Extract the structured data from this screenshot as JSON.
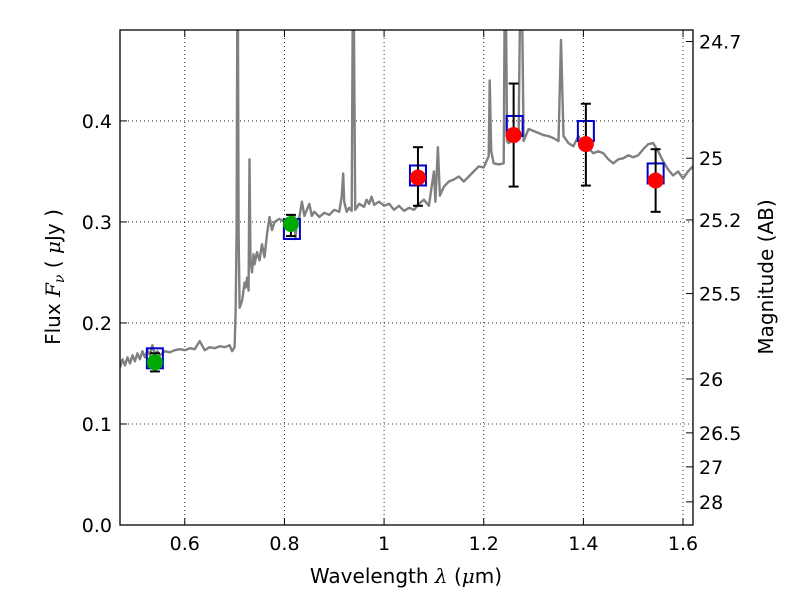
{
  "chart_data": {
    "type": "scatter",
    "xlabel": "Wavelength  λ (μm)",
    "ylabel": "Flux  Fν  ( μJy )",
    "y2label": "Magnitude (AB)",
    "xlim": [
      0.47,
      1.62
    ],
    "ylim": [
      0.0,
      0.49
    ],
    "x_ticks": [
      0.6,
      0.8,
      1.0,
      1.2,
      1.4,
      1.6
    ],
    "x_tick_labels": [
      "0.6",
      "0.8",
      "1",
      "1.2",
      "1.4",
      "1.6"
    ],
    "y_ticks": [
      0.0,
      0.1,
      0.2,
      0.3,
      0.4
    ],
    "y_tick_labels": [
      "0.0",
      "0.1",
      "0.2",
      "0.3",
      "0.4"
    ],
    "y2_ticks": [
      {
        "label": "24.7",
        "mag": 24.7
      },
      {
        "label": "25",
        "mag": 25.0
      },
      {
        "label": "25.2",
        "mag": 25.2
      },
      {
        "label": "25.5",
        "mag": 25.5
      },
      {
        "label": "26",
        "mag": 26.0
      },
      {
        "label": "26.5",
        "mag": 26.5
      },
      {
        "label": "27",
        "mag": 27.0
      },
      {
        "label": "28",
        "mag": 28.0
      }
    ],
    "grid": true,
    "colors": {
      "spectrum": "#808080",
      "model_box": "#0000cc",
      "observed_red": "#ff0000",
      "observed_green": "#00aa00",
      "errorbar": "#000000"
    },
    "series": [
      {
        "name": "model spectrum",
        "kind": "line",
        "points": [
          [
            0.47,
            0.156
          ],
          [
            0.475,
            0.164
          ],
          [
            0.48,
            0.158
          ],
          [
            0.485,
            0.166
          ],
          [
            0.49,
            0.16
          ],
          [
            0.495,
            0.168
          ],
          [
            0.5,
            0.162
          ],
          [
            0.505,
            0.17
          ],
          [
            0.51,
            0.164
          ],
          [
            0.515,
            0.172
          ],
          [
            0.52,
            0.166
          ],
          [
            0.525,
            0.173
          ],
          [
            0.53,
            0.168
          ],
          [
            0.535,
            0.178
          ],
          [
            0.54,
            0.169
          ],
          [
            0.545,
            0.172
          ],
          [
            0.55,
            0.168
          ],
          [
            0.56,
            0.172
          ],
          [
            0.57,
            0.171
          ],
          [
            0.58,
            0.173
          ],
          [
            0.59,
            0.174
          ],
          [
            0.6,
            0.173
          ],
          [
            0.61,
            0.175
          ],
          [
            0.62,
            0.174
          ],
          [
            0.63,
            0.182
          ],
          [
            0.64,
            0.173
          ],
          [
            0.65,
            0.176
          ],
          [
            0.66,
            0.175
          ],
          [
            0.67,
            0.177
          ],
          [
            0.68,
            0.176
          ],
          [
            0.69,
            0.178
          ],
          [
            0.695,
            0.172
          ],
          [
            0.7,
            0.176
          ],
          [
            0.702,
            0.21
          ],
          [
            0.704,
            0.29
          ],
          [
            0.706,
            0.6
          ],
          [
            0.708,
            0.29
          ],
          [
            0.71,
            0.215
          ],
          [
            0.715,
            0.222
          ],
          [
            0.72,
            0.24
          ],
          [
            0.722,
            0.235
          ],
          [
            0.725,
            0.245
          ],
          [
            0.728,
            0.232
          ],
          [
            0.73,
            0.362
          ],
          [
            0.732,
            0.262
          ],
          [
            0.735,
            0.25
          ],
          [
            0.738,
            0.268
          ],
          [
            0.74,
            0.258
          ],
          [
            0.745,
            0.27
          ],
          [
            0.75,
            0.262
          ],
          [
            0.755,
            0.278
          ],
          [
            0.76,
            0.265
          ],
          [
            0.765,
            0.288
          ],
          [
            0.77,
            0.305
          ],
          [
            0.775,
            0.292
          ],
          [
            0.78,
            0.3
          ],
          [
            0.79,
            0.303
          ],
          [
            0.8,
            0.3
          ],
          [
            0.805,
            0.298
          ],
          [
            0.81,
            0.302
          ],
          [
            0.815,
            0.3
          ],
          [
            0.82,
            0.306
          ],
          [
            0.822,
            0.283
          ],
          [
            0.825,
            0.3
          ],
          [
            0.83,
            0.305
          ],
          [
            0.835,
            0.32
          ],
          [
            0.84,
            0.306
          ],
          [
            0.85,
            0.318
          ],
          [
            0.855,
            0.306
          ],
          [
            0.86,
            0.31
          ],
          [
            0.87,
            0.305
          ],
          [
            0.88,
            0.309
          ],
          [
            0.89,
            0.307
          ],
          [
            0.9,
            0.312
          ],
          [
            0.91,
            0.31
          ],
          [
            0.915,
            0.325
          ],
          [
            0.918,
            0.348
          ],
          [
            0.92,
            0.32
          ],
          [
            0.925,
            0.31
          ],
          [
            0.93,
            0.314
          ],
          [
            0.935,
            0.311
          ],
          [
            0.938,
            0.6
          ],
          [
            0.942,
            0.312
          ],
          [
            0.95,
            0.318
          ],
          [
            0.96,
            0.315
          ],
          [
            0.965,
            0.322
          ],
          [
            0.97,
            0.318
          ],
          [
            0.975,
            0.325
          ],
          [
            0.98,
            0.317
          ],
          [
            0.99,
            0.32
          ],
          [
            1.0,
            0.316
          ],
          [
            1.01,
            0.318
          ],
          [
            1.02,
            0.312
          ],
          [
            1.03,
            0.316
          ],
          [
            1.04,
            0.311
          ],
          [
            1.05,
            0.314
          ],
          [
            1.06,
            0.312
          ],
          [
            1.07,
            0.318
          ],
          [
            1.08,
            0.322
          ],
          [
            1.09,
            0.316
          ],
          [
            1.1,
            0.35
          ],
          [
            1.103,
            0.32
          ],
          [
            1.108,
            0.374
          ],
          [
            1.112,
            0.326
          ],
          [
            1.12,
            0.335
          ],
          [
            1.13,
            0.34
          ],
          [
            1.14,
            0.342
          ],
          [
            1.15,
            0.345
          ],
          [
            1.16,
            0.34
          ],
          [
            1.17,
            0.345
          ],
          [
            1.18,
            0.35
          ],
          [
            1.19,
            0.355
          ],
          [
            1.2,
            0.354
          ],
          [
            1.21,
            0.365
          ],
          [
            1.212,
            0.44
          ],
          [
            1.215,
            0.37
          ],
          [
            1.22,
            0.358
          ],
          [
            1.23,
            0.357
          ],
          [
            1.24,
            0.358
          ],
          [
            1.243,
            0.6
          ],
          [
            1.247,
            0.38
          ],
          [
            1.25,
            0.378
          ],
          [
            1.26,
            0.382
          ],
          [
            1.27,
            0.385
          ],
          [
            1.275,
            0.6
          ],
          [
            1.28,
            0.38
          ],
          [
            1.29,
            0.392
          ],
          [
            1.3,
            0.39
          ],
          [
            1.31,
            0.388
          ],
          [
            1.32,
            0.386
          ],
          [
            1.33,
            0.385
          ],
          [
            1.34,
            0.383
          ],
          [
            1.35,
            0.38
          ],
          [
            1.355,
            0.48
          ],
          [
            1.36,
            0.385
          ],
          [
            1.37,
            0.378
          ],
          [
            1.38,
            0.375
          ],
          [
            1.39,
            0.385
          ],
          [
            1.4,
            0.377
          ],
          [
            1.41,
            0.373
          ],
          [
            1.42,
            0.368
          ],
          [
            1.43,
            0.37
          ],
          [
            1.44,
            0.368
          ],
          [
            1.45,
            0.362
          ],
          [
            1.46,
            0.358
          ],
          [
            1.47,
            0.362
          ],
          [
            1.48,
            0.363
          ],
          [
            1.49,
            0.366
          ],
          [
            1.5,
            0.364
          ],
          [
            1.51,
            0.366
          ],
          [
            1.52,
            0.372
          ],
          [
            1.53,
            0.377
          ],
          [
            1.54,
            0.378
          ],
          [
            1.55,
            0.37
          ],
          [
            1.56,
            0.36
          ],
          [
            1.57,
            0.352
          ],
          [
            1.58,
            0.346
          ],
          [
            1.59,
            0.35
          ],
          [
            1.6,
            0.343
          ],
          [
            1.61,
            0.35
          ],
          [
            1.62,
            0.355
          ]
        ]
      },
      {
        "name": "model photometry",
        "kind": "box",
        "points": [
          [
            0.54,
            0.165
          ],
          [
            0.815,
            0.293
          ],
          [
            1.068,
            0.346
          ],
          [
            1.262,
            0.395
          ],
          [
            1.405,
            0.39
          ],
          [
            1.545,
            0.348
          ]
        ]
      },
      {
        "name": "observed (green)",
        "kind": "marker",
        "color": "observed_green",
        "points": [
          {
            "x": 0.54,
            "y": 0.161,
            "err_low": 0.009,
            "err_high": 0.009
          },
          {
            "x": 0.813,
            "y": 0.298,
            "err_low": 0.012,
            "err_high": 0.009
          }
        ]
      },
      {
        "name": "observed (red)",
        "kind": "marker",
        "color": "observed_red",
        "points": [
          {
            "x": 1.068,
            "y": 0.344,
            "err_low": 0.028,
            "err_high": 0.03
          },
          {
            "x": 1.26,
            "y": 0.386,
            "err_low": 0.051,
            "err_high": 0.051
          },
          {
            "x": 1.405,
            "y": 0.377,
            "err_low": 0.041,
            "err_high": 0.04
          },
          {
            "x": 1.545,
            "y": 0.341,
            "err_low": 0.031,
            "err_high": 0.031
          }
        ]
      }
    ]
  }
}
